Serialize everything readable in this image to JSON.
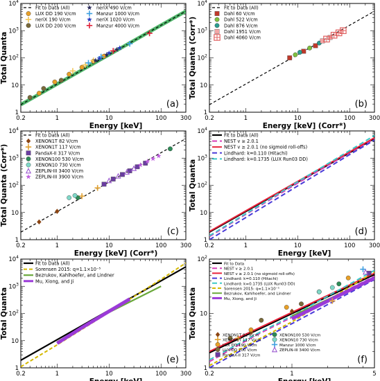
{
  "figure": {
    "background": "#ffffff",
    "note": ""
  },
  "chart_data": [
    {
      "panel": "(a)",
      "type": "scatter",
      "xlabel": "Energy [keV]",
      "ylabel": "Total Quanta",
      "xscale": "log",
      "yscale": "log",
      "xlim": [
        0.2,
        300
      ],
      "ylim": [
        1,
        10000
      ],
      "xticks": [
        "0.2",
        "1",
        "10",
        "100",
        "300"
      ],
      "yticks": [
        "1",
        "10",
        "10^2",
        "10^3",
        "10^4"
      ],
      "legend_position": "top-left",
      "fit_line": {
        "name": "Fit to Data (All)",
        "color": "#000000",
        "dash": "4,3",
        "x": [
          0.2,
          300
        ],
        "y": [
          1.9,
          5200
        ]
      },
      "fit_band": {
        "color": "#2fa84f"
      },
      "series": [
        {
          "name": "LUX DD 190 V/cm",
          "color": "#e8a028",
          "marker": "circle",
          "x": [
            0.45,
            0.9,
            1.7,
            3.0,
            5.0,
            8.0
          ],
          "y": [
            5,
            13,
            25,
            45,
            75,
            115
          ]
        },
        {
          "name": "neriX 190 V/cm",
          "color": "#f2c75c",
          "marker": "plus",
          "x": [
            2.0,
            3.5,
            5.0
          ],
          "y": [
            33,
            55,
            80
          ]
        },
        {
          "name": "LUX DD 200 V/cm",
          "color": "#7a6a3a",
          "marker": "circle",
          "x": [
            0.3,
            0.55,
            1.2
          ],
          "y": [
            3.5,
            7.5,
            15
          ]
        },
        {
          "name": "neriX 490 V/cm",
          "color": "#2a2a5a",
          "marker": "star",
          "x": [
            5.5,
            9.0,
            14.0
          ],
          "y": [
            80,
            130,
            200
          ]
        },
        {
          "name": "Manzur 1000 V/cm",
          "color": "#3fa0e0",
          "marker": "plus",
          "x": [
            4.0,
            7.0,
            25.0
          ],
          "y": [
            65,
            110,
            330
          ]
        },
        {
          "name": "neriX 1020 V/cm",
          "color": "#2a3ac0",
          "marker": "star",
          "x": [
            6.5,
            10.0,
            16.0
          ],
          "y": [
            95,
            150,
            230
          ]
        },
        {
          "name": "Manzur 4000 V/cm",
          "color": "#e0223a",
          "marker": "plus",
          "x": [
            12.0,
            60.0
          ],
          "y": [
            180,
            800
          ]
        }
      ],
      "annotations": [
        "(a)"
      ]
    },
    {
      "panel": "(b)",
      "type": "scatter",
      "xlabel": "Energy [keV] (Corr*)",
      "ylabel": "Total Quanta (Corr*)",
      "xscale": "log",
      "yscale": "log",
      "xlim": [
        0.2,
        300
      ],
      "ylim": [
        1,
        10000
      ],
      "xticks": [
        "0.2",
        "1",
        "10",
        "100",
        "300"
      ],
      "yticks": [
        "1",
        "10",
        "10^2",
        "10^3",
        "10^4"
      ],
      "legend_position": "top-left",
      "fit_line": {
        "name": "Fit to Data (All)",
        "color": "#000000",
        "dash": "4,3",
        "x": [
          0.2,
          300
        ],
        "y": [
          1.9,
          5200
        ]
      },
      "series": [
        {
          "name": "Dahl 60 V/cm",
          "color": "#c0392b",
          "marker": "square",
          "x": [
            7,
            13,
            22
          ],
          "y": [
            100,
            175,
            280
          ]
        },
        {
          "name": "Dahl 522 V/cm",
          "color": "#7fbf3f",
          "marker": "circle",
          "x": [
            9,
            17
          ],
          "y": [
            130,
            230
          ]
        },
        {
          "name": "Dahl 876 V/cm",
          "color": "#2a9d8f",
          "marker": "circle",
          "x": [
            11,
            26
          ],
          "y": [
            160,
            350
          ]
        },
        {
          "name": "Dahl 1951 V/cm",
          "color": "#f4a6a6",
          "marker": "square",
          "x": [
            30,
            42
          ],
          "y": [
            420,
            560
          ]
        },
        {
          "name": "Dahl 4060 V/cm",
          "color": "#e06060",
          "marker": "boxplus",
          "x": [
            36,
            50,
            62,
            75
          ],
          "y": [
            490,
            680,
            830,
            1000
          ]
        }
      ],
      "annotations": [
        "(b)"
      ]
    },
    {
      "panel": "(c)",
      "type": "scatter",
      "xlabel": "Energy [keV] (Corr*)",
      "ylabel": "Total Quanta (Corr*)",
      "xscale": "log",
      "yscale": "log",
      "xlim": [
        0.2,
        300
      ],
      "ylim": [
        1,
        10000
      ],
      "xticks": [
        "0.2",
        "1",
        "10",
        "100",
        "300"
      ],
      "yticks": [
        "1",
        "10",
        "10^2",
        "10^3",
        "10^4"
      ],
      "legend_position": "top-left",
      "fit_line": {
        "name": "Fit to Data (All)",
        "color": "#000000",
        "dash": "4,3",
        "x": [
          0.2,
          300
        ],
        "y": [
          1.9,
          5200
        ]
      },
      "series": [
        {
          "name": "XENON1T 82 V/cm",
          "color": "#8b4513",
          "marker": "diamond",
          "x": [
            0.45,
            1.0
          ],
          "y": [
            4.5,
            11
          ]
        },
        {
          "name": "XENON1T 117 V/cm",
          "color": "#e0a030",
          "marker": "plus",
          "x": [
            3.0,
            6.0
          ],
          "y": [
            40,
            80
          ]
        },
        {
          "name": "PandaX-II 317 V/cm",
          "color": "#6a3da0",
          "marker": "square",
          "x": [
            8,
            12,
            18,
            25,
            35,
            50
          ],
          "y": [
            110,
            170,
            250,
            340,
            480,
            650
          ]
        },
        {
          "name": "XENON100 530 V/cm",
          "color": "#2e8b57",
          "marker": "circle",
          "x": [
            2.5,
            150
          ],
          "y": [
            35,
            2200
          ]
        },
        {
          "name": "XENON10 730 V/cm",
          "color": "#7fd8c8",
          "marker": "circle",
          "x": [
            1.7,
            2.2
          ],
          "y": [
            35,
            42
          ]
        },
        {
          "name": "ZEPLIN-III 3400 V/cm",
          "color": "#9b59d0",
          "marker": "triangle",
          "x": [
            10,
            15,
            22,
            30
          ],
          "y": [
            150,
            220,
            310,
            420
          ]
        },
        {
          "name": "ZEPLIN-III 3900 V/cm",
          "color": "#c060e0",
          "marker": "star",
          "x": [
            40,
            55,
            70,
            90
          ],
          "y": [
            560,
            760,
            950,
            1200
          ]
        }
      ],
      "annotations": [
        "(c)"
      ]
    },
    {
      "panel": "(d)",
      "type": "line",
      "xlabel": "Energy [keV]",
      "ylabel": "Total Quanta",
      "xscale": "log",
      "yscale": "log",
      "xlim": [
        0.2,
        300
      ],
      "ylim": [
        1,
        10000
      ],
      "xticks": [
        "0.2",
        "1",
        "10",
        "100",
        "300"
      ],
      "yticks": [
        "1",
        "10",
        "10^2",
        "10^3",
        "10^4"
      ],
      "legend_position": "top-left",
      "series": [
        {
          "name": "Fit to Data (All)",
          "color": "#000000",
          "dash": "",
          "width": 2.2,
          "x": [
            0.2,
            300
          ],
          "y": [
            1.9,
            5200
          ]
        },
        {
          "name": "NEST v ≥ 2.0.1",
          "color": "#d63fb8",
          "dash": "7,4",
          "width": 2,
          "x": [
            0.2,
            1,
            10,
            100,
            300
          ],
          "y": [
            1.3,
            8.5,
            120,
            1600,
            5200
          ]
        },
        {
          "name": "NEST v ≥ 2.0.1 (no sigmoid roll-offs)",
          "color": "#e8223a",
          "dash": "",
          "width": 2,
          "x": [
            0.2,
            300
          ],
          "y": [
            2.0,
            5600
          ]
        },
        {
          "name": "Lindhard: k=0.110 (Hitachi)",
          "color": "#4a3ad8",
          "dash": "7,4",
          "width": 2,
          "x": [
            0.2,
            1,
            10,
            100,
            300
          ],
          "y": [
            1.0,
            6.5,
            95,
            1350,
            4600
          ]
        },
        {
          "name": "Lindhard: k=0.1735 (LUX Run03 DD)",
          "color": "#3ac8c8",
          "dash": "7,4",
          "width": 2,
          "x": [
            0.2,
            1,
            10,
            100,
            300
          ],
          "y": [
            1.4,
            9.0,
            135,
            1900,
            6800
          ]
        }
      ],
      "annotations": [
        "(d)"
      ]
    },
    {
      "panel": "(e)",
      "type": "line",
      "xlabel": "Energy [keV]",
      "ylabel": "Total Quanta",
      "xscale": "log",
      "yscale": "log",
      "xlim": [
        0.2,
        300
      ],
      "ylim": [
        1,
        10000
      ],
      "xticks": [
        "0.2",
        "1",
        "10",
        "100",
        "300"
      ],
      "yticks": [
        "1",
        "10",
        "10^2",
        "10^3",
        "10^4"
      ],
      "legend_position": "top-left",
      "series": [
        {
          "name": "Fit to Data (All)",
          "color": "#000000",
          "dash": "",
          "width": 2.2,
          "x": [
            0.2,
            300
          ],
          "y": [
            1.9,
            5200
          ]
        },
        {
          "name": "Sorensen 2015: q=1.1×10⁻⁵",
          "color": "#d4b800",
          "dash": "5,3",
          "width": 2,
          "x": [
            0.2,
            1,
            10,
            100,
            300
          ],
          "y": [
            1.1,
            7.0,
            110,
            1800,
            7200
          ]
        },
        {
          "name": "Bezrukov, Kahlhoefer, and Lindner",
          "color": "#6aa83a",
          "dash": "",
          "width": 2.2,
          "x": [
            1,
            10,
            100
          ],
          "y": [
            9,
            110,
            1000
          ]
        },
        {
          "name": "Mu, Xiong, and Ji",
          "color": "#9b3ad8",
          "dash": "",
          "width": 5,
          "x": [
            1,
            3,
            10,
            25
          ],
          "y": [
            8,
            30,
            120,
            340
          ]
        }
      ],
      "annotations": [
        "(e)"
      ]
    },
    {
      "panel": "(f)",
      "type": "line",
      "xlabel": "Energy [keV]",
      "ylabel": "Total Quanta",
      "xscale": "log",
      "yscale": "log",
      "xlim": [
        0.2,
        5
      ],
      "ylim": [
        1,
        100
      ],
      "xticks": [
        "0.2",
        "1",
        "5"
      ],
      "yticks": [
        "1",
        "10",
        "10^2"
      ],
      "legend_position": "top-left",
      "series": [
        {
          "name": "Fit to Data",
          "color": "#000000",
          "dash": "",
          "width": 2.2,
          "x": [
            0.2,
            5
          ],
          "y": [
            1.9,
            52
          ]
        },
        {
          "name": "NEST v ≥ 2.0.1",
          "color": "#d63fb8",
          "dash": "7,4",
          "width": 2,
          "x": [
            0.2,
            0.5,
            1,
            5
          ],
          "y": [
            1.3,
            4,
            8.5,
            48
          ]
        },
        {
          "name": "NEST v ≥ 2.0.1 (no sigmoid roll-offs)",
          "color": "#e8223a",
          "dash": "",
          "width": 2,
          "x": [
            0.2,
            5
          ],
          "y": [
            2.0,
            55
          ]
        },
        {
          "name": "Lindhard: k=0.110 (Hitachi)",
          "color": "#4a3ad8",
          "dash": "7,4",
          "width": 2,
          "x": [
            0.2,
            0.5,
            1,
            5
          ],
          "y": [
            1.0,
            3.0,
            6.5,
            42
          ]
        },
        {
          "name": "Lindhard: k=0.1735 (LUX Run03 DD)",
          "color": "#3ac8c8",
          "dash": "7,4",
          "width": 2,
          "x": [
            0.2,
            0.5,
            1,
            5
          ],
          "y": [
            1.4,
            4.2,
            9.0,
            62
          ]
        },
        {
          "name": "Sorensen 2015: q=1.1×10⁻⁵",
          "color": "#d4b800",
          "dash": "5,3",
          "width": 2,
          "x": [
            0.2,
            0.5,
            1,
            5
          ],
          "y": [
            1.1,
            3.2,
            7.0,
            58
          ]
        },
        {
          "name": "Bezrukov, Kahlhoefer, and Lindner",
          "color": "#6aa83a",
          "dash": "",
          "width": 2,
          "x": [
            1,
            5
          ],
          "y": [
            9,
            45
          ]
        },
        {
          "name": "Mu, Xiong, and Ji",
          "color": "#9b3ad8",
          "dash": "",
          "width": 5,
          "x": [
            1,
            5
          ],
          "y": [
            8,
            45
          ]
        }
      ],
      "points": [
        {
          "name": "XENON1T 82 V/cm",
          "color": "#8b4513",
          "marker": "diamond",
          "x": [
            0.45,
            1.0
          ],
          "y": [
            4.5,
            11
          ]
        },
        {
          "name": "XENON1T 117 V/cm",
          "color": "#e0a030",
          "marker": "plus",
          "x": [
            0.35,
            2.2
          ],
          "y": [
            3.5,
            17
          ]
        },
        {
          "name": "LUX DD 190 V/cm",
          "color": "#e8a028",
          "marker": "circle",
          "x": [
            0.45,
            0.9,
            1.7,
            3.0
          ],
          "y": [
            5,
            13,
            25,
            45
          ]
        },
        {
          "name": "LUX DD 200 V/cm",
          "color": "#7a6a3a",
          "marker": "circle",
          "x": [
            0.3,
            0.55,
            1.2
          ],
          "y": [
            3.5,
            7.5,
            15
          ]
        },
        {
          "name": "PandaX-II 317 V/cm",
          "color": "#6a3da0",
          "marker": "square",
          "x": [
            4.5
          ],
          "y": [
            55
          ]
        },
        {
          "name": "XENON100 530 V/cm",
          "color": "#2e8b57",
          "marker": "circle",
          "x": [
            2.5
          ],
          "y": [
            35
          ]
        },
        {
          "name": "XENON10 730 V/cm",
          "color": "#7fd8c8",
          "marker": "circle",
          "x": [
            1.7,
            2.2
          ],
          "y": [
            25,
            30
          ]
        },
        {
          "name": "Manzur 1000 V/cm",
          "color": "#3fa0e0",
          "marker": "plus",
          "x": [
            4.0
          ],
          "y": [
            65
          ]
        },
        {
          "name": "ZEPLIN-III 3400 V/cm",
          "color": "#9b59d0",
          "marker": "triangle",
          "x": [
            4.2
          ],
          "y": [
            58
          ]
        }
      ],
      "annotations": [
        "(f)"
      ]
    }
  ]
}
